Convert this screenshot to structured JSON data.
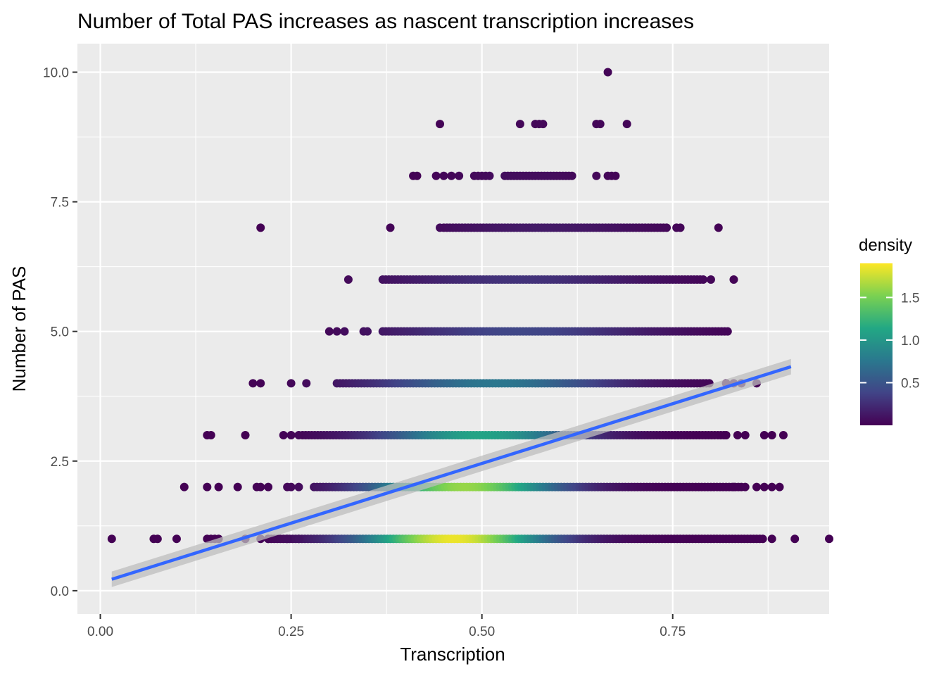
{
  "chart_data": {
    "type": "scatter",
    "title": "Number of Total PAS increases as nascent transcription increases",
    "xlabel": "Transcription",
    "ylabel": "Number of PAS",
    "xlim": [
      -0.03,
      0.955
    ],
    "ylim": [
      -0.45,
      10.55
    ],
    "x_ticks": [
      0.0,
      0.25,
      0.5,
      0.75
    ],
    "x_tick_labels": [
      "0.00",
      "0.25",
      "0.50",
      "0.75"
    ],
    "y_ticks": [
      0.0,
      2.5,
      5.0,
      7.5,
      10.0
    ],
    "y_tick_labels": [
      "0.0",
      "2.5",
      "5.0",
      "7.5",
      "10.0"
    ],
    "grid": true,
    "panel_background": "#ebebeb",
    "grid_color": "#ffffff",
    "colormap": "viridis",
    "colormap_stops": [
      "#440154",
      "#414487",
      "#2a788e",
      "#22a884",
      "#7ad151",
      "#fde725"
    ],
    "legend": {
      "title": "density",
      "placement": "right",
      "range": [
        0.0,
        1.9
      ],
      "ticks": [
        0.5,
        1.0,
        1.5
      ],
      "tick_labels": [
        "0.5",
        "1.0",
        "1.5"
      ]
    },
    "series": [
      {
        "y": 1,
        "bands": [
          [
            0.22,
            0.87
          ]
        ],
        "peak_x": 0.465,
        "peak_density": 1.85,
        "spread": 0.085,
        "isolated_x": [
          0.015,
          0.07,
          0.075,
          0.1,
          0.14,
          0.145,
          0.15,
          0.155,
          0.19,
          0.21,
          0.22,
          0.245,
          0.26,
          0.88,
          0.91,
          0.955
        ]
      },
      {
        "y": 2,
        "bands": [
          [
            0.28,
            0.84
          ]
        ],
        "peak_x": 0.48,
        "peak_density": 1.6,
        "spread": 0.085,
        "isolated_x": [
          0.11,
          0.14,
          0.155,
          0.18,
          0.205,
          0.21,
          0.22,
          0.245,
          0.25,
          0.26,
          0.83,
          0.845,
          0.86,
          0.87,
          0.88,
          0.89
        ]
      },
      {
        "y": 3,
        "bands": [
          [
            0.265,
            0.82
          ]
        ],
        "peak_x": 0.5,
        "peak_density": 1.1,
        "spread": 0.09,
        "isolated_x": [
          0.14,
          0.145,
          0.19,
          0.24,
          0.25,
          0.26,
          0.82,
          0.835,
          0.845,
          0.87,
          0.88,
          0.895
        ]
      },
      {
        "y": 4,
        "bands": [
          [
            0.31,
            0.8
          ]
        ],
        "peak_x": 0.52,
        "peak_density": 0.75,
        "spread": 0.11,
        "isolated_x": [
          0.2,
          0.21,
          0.25,
          0.27,
          0.82,
          0.83,
          0.84,
          0.86
        ]
      },
      {
        "y": 5,
        "bands": [
          [
            0.37,
            0.825
          ]
        ],
        "peak_x": 0.55,
        "peak_density": 0.4,
        "spread": 0.12,
        "isolated_x": [
          0.3,
          0.31,
          0.32,
          0.345,
          0.35
        ]
      },
      {
        "y": 6,
        "bands": [
          [
            0.37,
            0.79
          ]
        ],
        "peak_x": 0.55,
        "peak_density": 0.28,
        "spread": 0.12,
        "isolated_x": [
          0.325,
          0.8,
          0.83
        ]
      },
      {
        "y": 7,
        "bands": [
          [
            0.45,
            0.745
          ]
        ],
        "peak_x": 0.58,
        "peak_density": 0.14,
        "spread": 0.1,
        "isolated_x": [
          0.21,
          0.38,
          0.445,
          0.755,
          0.76,
          0.81
        ]
      },
      {
        "y": 8,
        "bands": [
          [
            0.53,
            0.62
          ]
        ],
        "peak_x": 0.56,
        "peak_density": 0.07,
        "spread": 0.08,
        "isolated_x": [
          0.41,
          0.415,
          0.44,
          0.45,
          0.46,
          0.47,
          0.49,
          0.495,
          0.5,
          0.505,
          0.51,
          0.65,
          0.665,
          0.67,
          0.675
        ]
      },
      {
        "y": 9,
        "bands": [],
        "peak_x": 0.6,
        "peak_density": 0.04,
        "spread": 0.1,
        "isolated_x": [
          0.445,
          0.55,
          0.57,
          0.575,
          0.58,
          0.65,
          0.655,
          0.69
        ]
      },
      {
        "y": 10,
        "bands": [],
        "peak_x": 0.66,
        "peak_density": 0.02,
        "spread": 0.1,
        "isolated_x": [
          0.665
        ]
      }
    ],
    "fit": {
      "type": "linear",
      "x_range": [
        0.015,
        0.905
      ],
      "y_start": 0.22,
      "y_end": 4.32,
      "color": "#3366ff",
      "band_color": "#bdbdbd"
    }
  }
}
